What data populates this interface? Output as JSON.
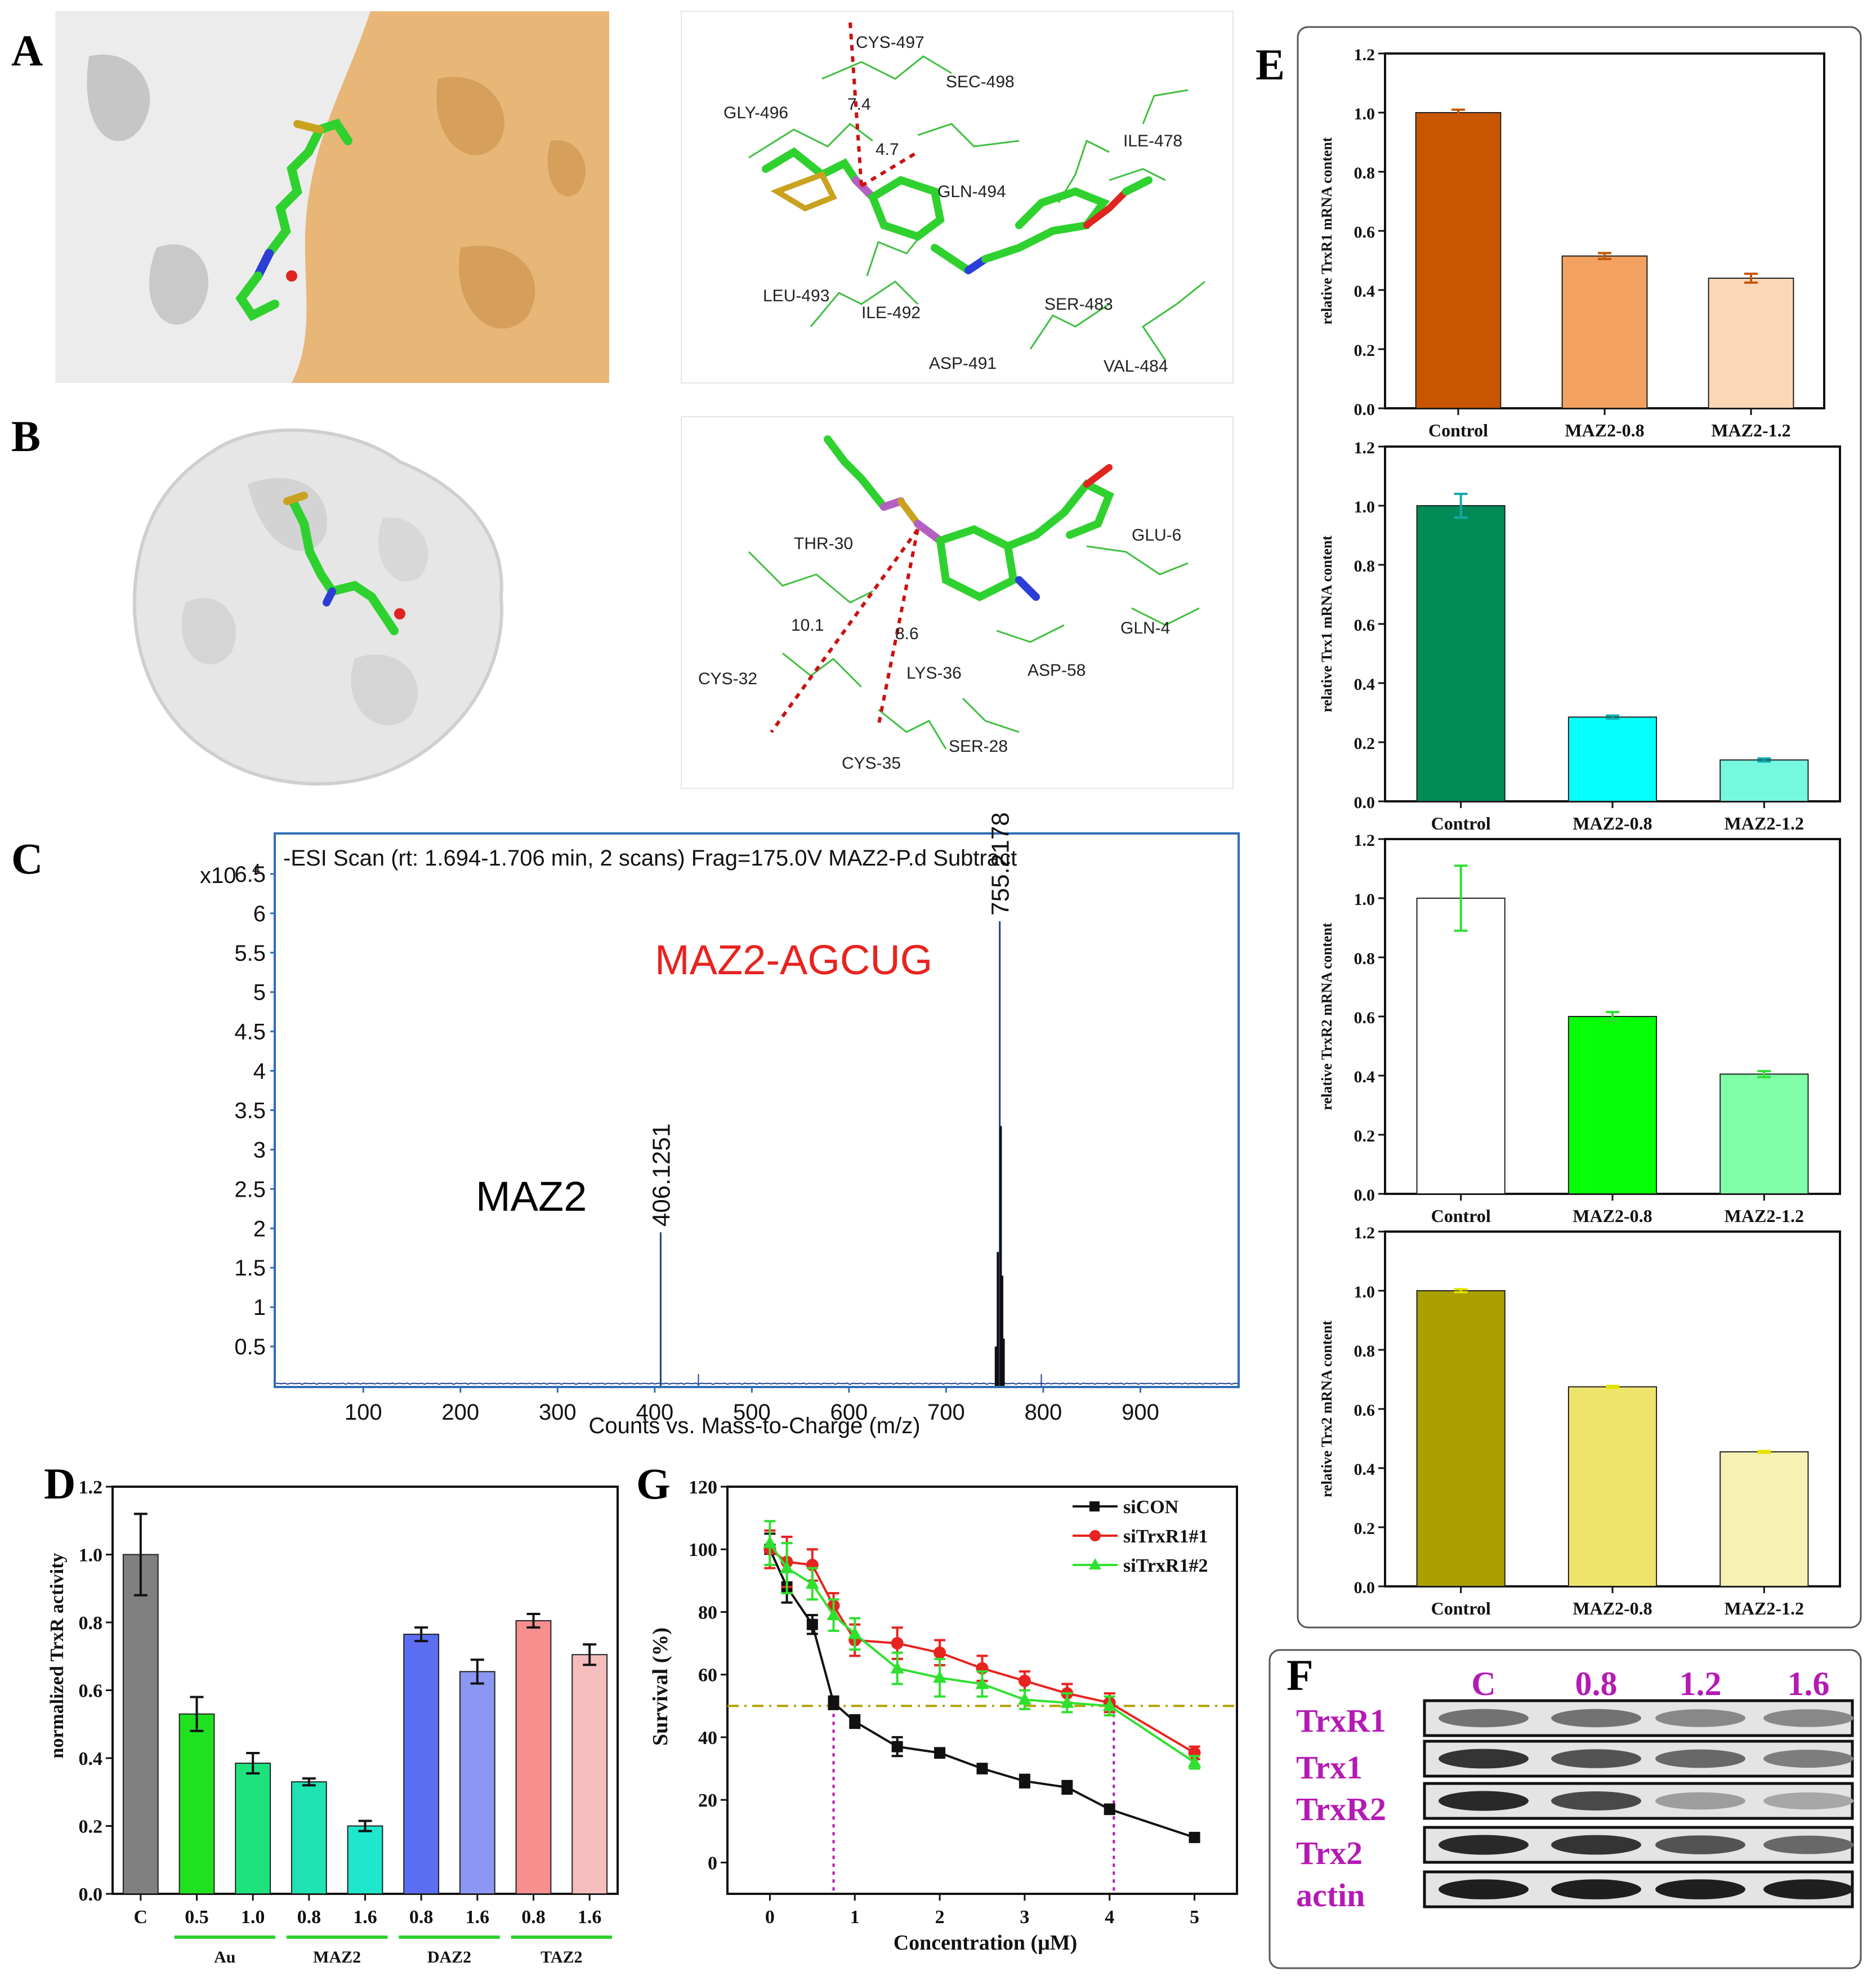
{
  "panels": {
    "A": "A",
    "B": "B",
    "C": "C",
    "D": "D",
    "E": "E",
    "F": "F",
    "G": "G"
  },
  "colors": {
    "protein_grey": "#dcdcdc",
    "protein_orange": "#e9b677",
    "ligand_green": "#2fd12f",
    "sulfur": "#c9a21f",
    "phosphorus": "#b45fc1",
    "nitrogen": "#2b3fd6",
    "oxygen": "#e0241f",
    "residue_line": "#3fbf3f",
    "hbond": "#cc1111"
  },
  "docking_A": {
    "residues": [
      "CYS-497",
      "SEC-498",
      "GLY-496",
      "ILE-478",
      "GLN-494",
      "LEU-493",
      "ILE-492",
      "SER-483",
      "ASP-491",
      "VAL-484"
    ],
    "distances": [
      "7.4",
      "4.7"
    ]
  },
  "docking_B": {
    "residues": [
      "THR-30",
      "GLU-6",
      "GLN-4",
      "CYS-32",
      "LYS-36",
      "ASP-58",
      "SER-28",
      "CYS-35"
    ],
    "distances": [
      "10.1",
      "8.6"
    ]
  },
  "chart_data": [
    {
      "id": "C",
      "type": "line",
      "title": "-ESI Scan (rt: 1.694-1.706 min, 2 scans) Frag=175.0V MAZ2-P.d  Subtract",
      "xlabel": "Counts vs. Mass-to-Charge (m/z)",
      "y_multiplier": "x10",
      "y_exponent": "4",
      "xticks": [
        "100",
        "200",
        "300",
        "400",
        "500",
        "600",
        "700",
        "800",
        "900"
      ],
      "yticks": [
        "0.5",
        "1",
        "1.5",
        "2",
        "2.5",
        "3",
        "3.5",
        "4",
        "4.5",
        "5",
        "5.5",
        "6",
        "6.5"
      ],
      "xlim": [
        10,
        1000
      ],
      "ylim": [
        0,
        7.0
      ],
      "peaks": [
        {
          "x": 406.1251,
          "y": 1.95,
          "label": "406.1251"
        },
        {
          "x": 755.2178,
          "y": 5.9,
          "label": "755.2178"
        }
      ],
      "annotations": [
        {
          "text": "MAZ2",
          "color": "#000000"
        },
        {
          "text": "MAZ2-AGCUG",
          "color": "#e8231f"
        }
      ]
    },
    {
      "id": "D",
      "type": "bar",
      "ylabel": "normalized TrxR activity",
      "ylim": [
        0,
        1.2
      ],
      "yticks": [
        "0.0",
        "0.2",
        "0.4",
        "0.6",
        "0.8",
        "1.0",
        "1.2"
      ],
      "categories": [
        "C",
        "0.5",
        "1.0",
        "0.8",
        "1.6",
        "0.8",
        "1.6",
        "0.8",
        "1.6"
      ],
      "values": [
        1.0,
        0.53,
        0.385,
        0.33,
        0.2,
        0.765,
        0.655,
        0.805,
        0.705
      ],
      "errors": [
        0.12,
        0.05,
        0.03,
        0.01,
        0.015,
        0.02,
        0.035,
        0.02,
        0.03
      ],
      "bar_colors": [
        "#808080",
        "#1fe11f",
        "#1ee27d",
        "#1fe3b3",
        "#1ee7cd",
        "#5c6ef1",
        "#8b97f3",
        "#f78f8f",
        "#f6bdbd"
      ],
      "groups": [
        {
          "label": "Au"
        },
        {
          "label": "MAZ2"
        },
        {
          "label": "DAZ2"
        },
        {
          "label": "TAZ2"
        }
      ]
    },
    {
      "id": "G",
      "type": "line",
      "xlabel": "Concentration (μM)",
      "ylabel": "Survival (%)",
      "xlim": [
        -0.5,
        5.5
      ],
      "ylim": [
        -10,
        120
      ],
      "xticks": [
        "0",
        "1",
        "2",
        "3",
        "4",
        "5"
      ],
      "yticks": [
        "0",
        "20",
        "40",
        "60",
        "80",
        "100",
        "120"
      ],
      "series": [
        {
          "name": "siCON",
          "color": "#111111",
          "x": [
            0,
            0.2,
            0.5,
            0.75,
            1,
            1.5,
            2,
            2.5,
            3,
            3.5,
            4,
            5
          ],
          "y": [
            100,
            88,
            76,
            51,
            45,
            37,
            35,
            30,
            26,
            24,
            17,
            8
          ],
          "err": [
            5,
            5,
            3,
            2,
            2,
            3,
            1.5,
            1.5,
            2,
            2,
            1.5,
            1
          ]
        },
        {
          "name": "siTrxR1#1",
          "color": "#e8231f",
          "x": [
            0,
            0.2,
            0.5,
            0.75,
            1,
            1.5,
            2,
            2.5,
            3,
            3.5,
            4,
            5
          ],
          "y": [
            100,
            96,
            95,
            82,
            71,
            70,
            67,
            62,
            58,
            54,
            51,
            35
          ],
          "err": [
            6,
            8,
            5,
            4,
            5,
            5,
            4,
            4,
            3,
            3,
            3,
            2
          ]
        },
        {
          "name": "siTrxR1#2",
          "color": "#2fe02f",
          "x": [
            0,
            0.2,
            0.5,
            0.75,
            1,
            1.5,
            2,
            2.5,
            3,
            3.5,
            4,
            5
          ],
          "y": [
            102,
            94,
            89,
            79,
            73,
            62,
            59,
            57,
            52,
            51,
            50,
            32
          ],
          "err": [
            7,
            8,
            5,
            5,
            5,
            5,
            6,
            4,
            3,
            3,
            3,
            2
          ]
        }
      ],
      "reference_line": {
        "y": 50,
        "color": "#b4a000"
      },
      "ic50_markers": [
        0.75,
        4.05
      ]
    },
    {
      "id": "E1",
      "type": "bar",
      "ylabel": "relative TrxR1 mRNA content",
      "ylim": [
        0,
        1.2
      ],
      "yticks": [
        "0.0",
        "0.2",
        "0.4",
        "0.6",
        "0.8",
        "1.0",
        "1.2"
      ],
      "categories": [
        "Control",
        "MAZ2-0.8",
        "MAZ2-1.2"
      ],
      "values": [
        1.0,
        0.515,
        0.44
      ],
      "errors": [
        0.01,
        0.01,
        0.015
      ],
      "bar_colors": [
        "#c85500",
        "#f3a160",
        "#fbd7b6"
      ]
    },
    {
      "id": "E2",
      "type": "bar",
      "ylabel": "relative Trx1 mRNA content",
      "ylim": [
        0,
        1.2
      ],
      "yticks": [
        "0.0",
        "0.2",
        "0.4",
        "0.6",
        "0.8",
        "1.0",
        "1.2"
      ],
      "categories": [
        "Control",
        "MAZ2-0.8",
        "MAZ2-1.2"
      ],
      "values": [
        1.0,
        0.285,
        0.14
      ],
      "errors": [
        0.04,
        0.005,
        0.005
      ],
      "bar_colors": [
        "#008a55",
        "#05ffff",
        "#75f7e0"
      ]
    },
    {
      "id": "E3",
      "type": "bar",
      "ylabel": "relative TrxR2 mRNA content",
      "ylim": [
        0,
        1.2
      ],
      "yticks": [
        "0.0",
        "0.2",
        "0.4",
        "0.6",
        "0.8",
        "1.0",
        "1.2"
      ],
      "categories": [
        "Control",
        "MAZ2-0.8",
        "MAZ2-1.2"
      ],
      "values": [
        1.0,
        0.6,
        0.405
      ],
      "errors": [
        0.11,
        0.015,
        0.01
      ],
      "bar_colors": [
        "#ffffff",
        "#05ff05",
        "#80ffa8"
      ]
    },
    {
      "id": "E4",
      "type": "bar",
      "ylabel": "relative Trx2 mRNA content",
      "ylim": [
        0,
        1.2
      ],
      "yticks": [
        "0.0",
        "0.2",
        "0.4",
        "0.6",
        "0.8",
        "1.0",
        "1.2"
      ],
      "categories": [
        "Control",
        "MAZ2-0.8",
        "MAZ2-1.2"
      ],
      "values": [
        1.0,
        0.675,
        0.455
      ],
      "errors": [
        0.005,
        0.003,
        0.003
      ],
      "bar_colors": [
        "#aa9f00",
        "#efe46b",
        "#f6f2b4"
      ]
    }
  ],
  "western_F": {
    "columns": [
      "C",
      "0.8",
      "1.2",
      "1.6"
    ],
    "rows": [
      "TrxR1",
      "Trx1",
      "TrxR2",
      "Trx2",
      "actin"
    ],
    "label_color": "#b51ab5",
    "band_intensity": [
      [
        0.55,
        0.55,
        0.45,
        0.45
      ],
      [
        0.85,
        0.7,
        0.6,
        0.5
      ],
      [
        0.9,
        0.75,
        0.35,
        0.3
      ],
      [
        0.9,
        0.85,
        0.7,
        0.6
      ],
      [
        0.95,
        0.95,
        0.95,
        0.95
      ]
    ]
  }
}
